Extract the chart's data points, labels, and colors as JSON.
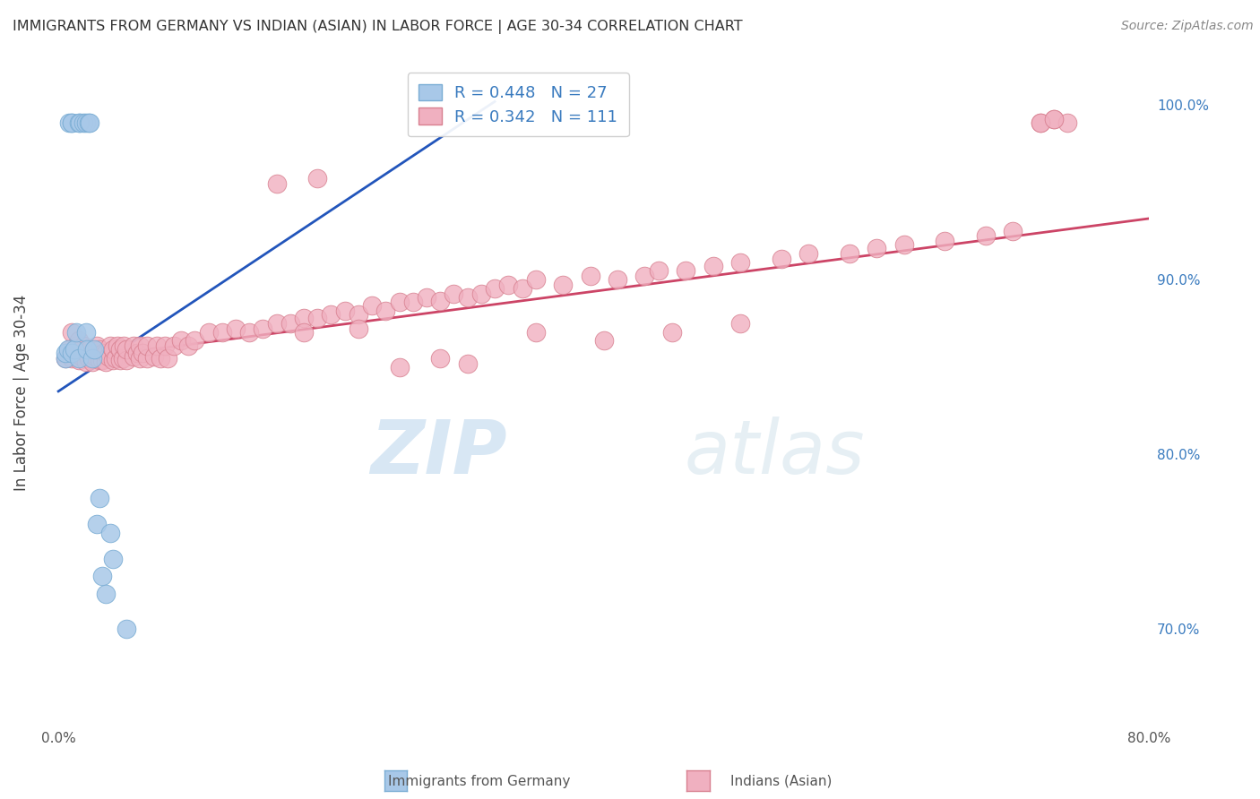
{
  "title": "IMMIGRANTS FROM GERMANY VS INDIAN (ASIAN) IN LABOR FORCE | AGE 30-34 CORRELATION CHART",
  "source": "Source: ZipAtlas.com",
  "ylabel": "In Labor Force | Age 30-34",
  "watermark_zip": "ZIP",
  "watermark_atlas": "atlas",
  "legend_label1": "Immigrants from Germany",
  "legend_label2": "Indians (Asian)",
  "r1": 0.448,
  "n1": 27,
  "r2": 0.342,
  "n2": 111,
  "color_blue_fill": "#a8c8e8",
  "color_pink_fill": "#f0b0c0",
  "color_blue_edge": "#7aadd4",
  "color_pink_edge": "#d88090",
  "line_blue": "#2255bb",
  "line_pink": "#cc4466",
  "background": "#ffffff",
  "grid_color": "#cccccc",
  "text_blue": "#3a7bbf",
  "blue_x": [
    0.005,
    0.005,
    0.007,
    0.008,
    0.01,
    0.01,
    0.01,
    0.012,
    0.013,
    0.015,
    0.015,
    0.016,
    0.018,
    0.02,
    0.02,
    0.021,
    0.022,
    0.023,
    0.025,
    0.026,
    0.028,
    0.03,
    0.032,
    0.035,
    0.038,
    0.04,
    0.05
  ],
  "blue_y": [
    0.855,
    0.858,
    0.86,
    0.99,
    0.858,
    0.99,
    0.99,
    0.86,
    0.87,
    0.855,
    0.99,
    0.99,
    0.99,
    0.87,
    0.99,
    0.86,
    0.99,
    0.99,
    0.855,
    0.86,
    0.76,
    0.775,
    0.73,
    0.72,
    0.755,
    0.74,
    0.7
  ],
  "pink_x": [
    0.005,
    0.007,
    0.008,
    0.01,
    0.01,
    0.012,
    0.013,
    0.015,
    0.015,
    0.017,
    0.018,
    0.02,
    0.02,
    0.022,
    0.023,
    0.025,
    0.025,
    0.027,
    0.028,
    0.03,
    0.03,
    0.032,
    0.033,
    0.035,
    0.035,
    0.037,
    0.038,
    0.04,
    0.04,
    0.042,
    0.043,
    0.045,
    0.045,
    0.047,
    0.048,
    0.05,
    0.05,
    0.055,
    0.055,
    0.058,
    0.06,
    0.06,
    0.062,
    0.065,
    0.065,
    0.07,
    0.072,
    0.075,
    0.078,
    0.08,
    0.085,
    0.09,
    0.095,
    0.1,
    0.11,
    0.12,
    0.13,
    0.14,
    0.15,
    0.16,
    0.17,
    0.18,
    0.19,
    0.2,
    0.21,
    0.22,
    0.23,
    0.24,
    0.25,
    0.26,
    0.27,
    0.28,
    0.29,
    0.3,
    0.31,
    0.32,
    0.33,
    0.34,
    0.35,
    0.37,
    0.39,
    0.41,
    0.43,
    0.44,
    0.46,
    0.48,
    0.5,
    0.53,
    0.55,
    0.58,
    0.6,
    0.62,
    0.65,
    0.68,
    0.7,
    0.72,
    0.73,
    0.74,
    0.72,
    0.73,
    0.35,
    0.4,
    0.45,
    0.25,
    0.28,
    0.3,
    0.18,
    0.22,
    0.16,
    0.19,
    0.5
  ],
  "pink_y": [
    0.855,
    0.858,
    0.86,
    0.855,
    0.87,
    0.858,
    0.862,
    0.854,
    0.865,
    0.856,
    0.862,
    0.853,
    0.858,
    0.855,
    0.86,
    0.853,
    0.858,
    0.856,
    0.862,
    0.854,
    0.86,
    0.854,
    0.858,
    0.853,
    0.858,
    0.856,
    0.862,
    0.854,
    0.86,
    0.855,
    0.862,
    0.854,
    0.86,
    0.855,
    0.862,
    0.854,
    0.86,
    0.856,
    0.862,
    0.858,
    0.855,
    0.862,
    0.858,
    0.855,
    0.862,
    0.856,
    0.862,
    0.855,
    0.862,
    0.855,
    0.862,
    0.865,
    0.862,
    0.865,
    0.87,
    0.87,
    0.872,
    0.87,
    0.872,
    0.875,
    0.875,
    0.878,
    0.878,
    0.88,
    0.882,
    0.88,
    0.885,
    0.882,
    0.887,
    0.887,
    0.89,
    0.888,
    0.892,
    0.89,
    0.892,
    0.895,
    0.897,
    0.895,
    0.9,
    0.897,
    0.902,
    0.9,
    0.902,
    0.905,
    0.905,
    0.908,
    0.91,
    0.912,
    0.915,
    0.915,
    0.918,
    0.92,
    0.922,
    0.925,
    0.928,
    0.99,
    0.992,
    0.99,
    0.99,
    0.992,
    0.87,
    0.865,
    0.87,
    0.85,
    0.855,
    0.852,
    0.87,
    0.872,
    0.955,
    0.958,
    0.875
  ]
}
